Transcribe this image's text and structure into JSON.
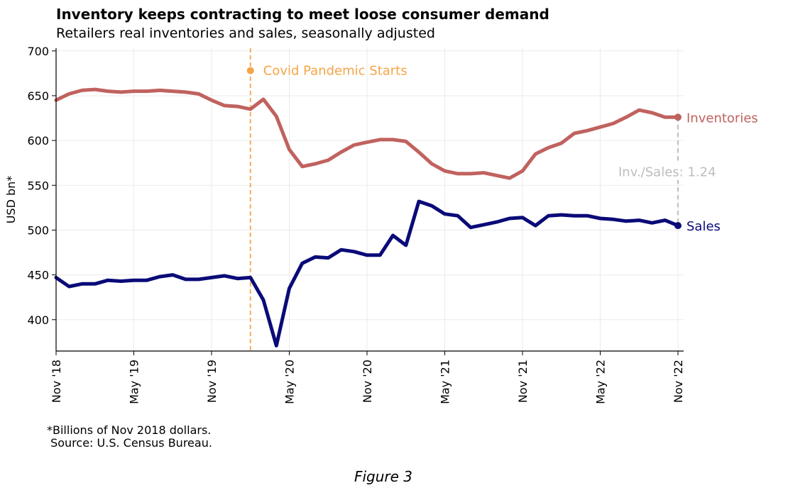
{
  "title": "Inventory keeps contracting to meet loose consumer demand",
  "subtitle": "Retailers real inventories and sales, seasonally adjusted",
  "footnote": "*Billions of Nov 2018 dollars.\n Source: U.S. Census Bureau.",
  "caption": "Figure 3",
  "colors": {
    "inventories": "#c0625f",
    "sales": "#0a0a78",
    "covid": "#f4a547",
    "ratio": "#bdbdbd",
    "grid": "#ebebeb"
  },
  "chart_data": {
    "type": "line",
    "ylabel": "USD bn*",
    "ylim": [
      365,
      703
    ],
    "yticks": [
      400,
      450,
      500,
      550,
      600,
      650,
      700
    ],
    "xlim": [
      0,
      48
    ],
    "x_start": "Nov '18",
    "x_end": "Nov '22",
    "xticks": [
      {
        "pos": 0,
        "label": "Nov '18"
      },
      {
        "pos": 6,
        "label": "May '19"
      },
      {
        "pos": 12,
        "label": "Nov '19"
      },
      {
        "pos": 18,
        "label": "May '20"
      },
      {
        "pos": 24,
        "label": "Nov '20"
      },
      {
        "pos": 30,
        "label": "May '21"
      },
      {
        "pos": 36,
        "label": "Nov '21"
      },
      {
        "pos": 42,
        "label": "May '22"
      },
      {
        "pos": 48,
        "label": "Nov '22"
      }
    ],
    "grid": true,
    "series": [
      {
        "name": "Inventories",
        "values": [
          645,
          652,
          656,
          657,
          655,
          654,
          655,
          655,
          656,
          655,
          654,
          652,
          645,
          639,
          638,
          635,
          646,
          627,
          590,
          571,
          574,
          578,
          587,
          595,
          598,
          601,
          601,
          599,
          587,
          574,
          566,
          563,
          563,
          564,
          561,
          558,
          566,
          585,
          592,
          597,
          608,
          611,
          615,
          619,
          626,
          634,
          631,
          626,
          626
        ]
      },
      {
        "name": "Sales",
        "values": [
          447,
          437,
          440,
          440,
          444,
          443,
          444,
          444,
          448,
          450,
          445,
          445,
          447,
          449,
          446,
          447,
          422,
          371,
          435,
          463,
          470,
          469,
          478,
          476,
          472,
          472,
          494,
          483,
          532,
          527,
          518,
          516,
          503,
          506,
          509,
          513,
          514,
          505,
          516,
          517,
          516,
          516,
          513,
          512,
          510,
          511,
          508,
          511,
          505
        ]
      }
    ],
    "annotations": {
      "covid_label": "Covid Pandemic Starts",
      "covid_x": 15,
      "covid_marker_y": 678,
      "ratio_label": "Inv./Sales: 1.24"
    }
  }
}
